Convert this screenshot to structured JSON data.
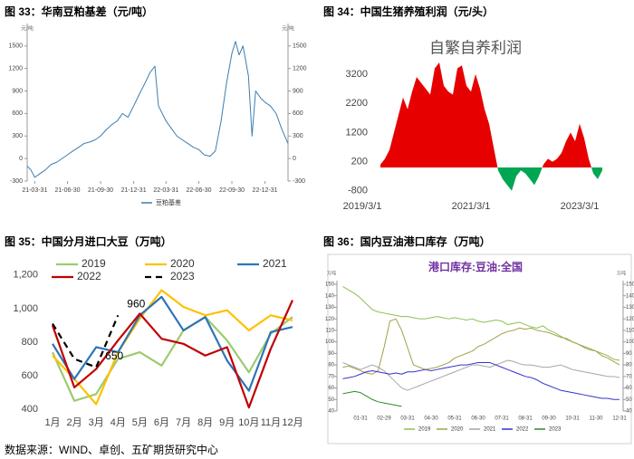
{
  "source": "数据来源：WIND、卓创、五矿期货研究中心",
  "chart_data": [
    {
      "type": "line",
      "title": "图 33：华南豆粕基差（元/吨）",
      "ylabel": "元/吨",
      "y2label": "元/吨",
      "x": [
        "21-03-10",
        "21-03-20",
        "21-03-31",
        "21-04-15",
        "21-04-30",
        "21-05-15",
        "21-05-31",
        "21-06-15",
        "21-06-30",
        "21-07-15",
        "21-07-31",
        "21-08-15",
        "21-08-31",
        "21-09-15",
        "21-09-30",
        "21-10-15",
        "21-10-31",
        "21-11-15",
        "21-11-30",
        "21-12-15",
        "21-12-31",
        "22-01-15",
        "22-01-31",
        "22-02-15",
        "22-02-28",
        "22-03-10",
        "22-03-31",
        "22-04-15",
        "22-04-30",
        "22-05-15",
        "22-05-31",
        "22-06-15",
        "22-06-30",
        "22-07-15",
        "22-07-31",
        "22-08-15",
        "22-08-31",
        "22-09-15",
        "22-09-30",
        "22-10-10",
        "22-10-20",
        "22-10-31",
        "22-11-15",
        "22-11-25",
        "22-12-05",
        "22-12-20",
        "22-12-31",
        "23-01-15",
        "23-01-31",
        "23-02-15",
        "23-03-05"
      ],
      "series": [
        {
          "name": "豆粕基差",
          "color": "#3c7dae",
          "values": [
            -100,
            -150,
            -250,
            -200,
            -150,
            -80,
            -50,
            0,
            50,
            100,
            150,
            200,
            220,
            250,
            300,
            380,
            450,
            500,
            600,
            550,
            700,
            850,
            1000,
            1150,
            1230,
            700,
            500,
            400,
            300,
            250,
            200,
            150,
            120,
            50,
            30,
            100,
            500,
            1000,
            1400,
            1560,
            1380,
            1500,
            1100,
            300,
            900,
            800,
            750,
            700,
            600,
            400,
            200
          ]
        }
      ],
      "xticks": [
        "21-03-31",
        "21-06-30",
        "21-09-30",
        "21-12-31",
        "22-03-31",
        "22-06-30",
        "22-09-30",
        "22-12-31"
      ],
      "ylim": [
        -300,
        1750
      ],
      "yticks": [
        -300,
        0,
        300,
        600,
        900,
        1200,
        1500
      ],
      "y2lim": [
        -300,
        1750
      ],
      "y2ticks": [
        -300,
        0,
        300,
        600,
        900,
        1200,
        1500
      ]
    },
    {
      "type": "area",
      "title": "图 34：中国生猪养殖利润（元/头）",
      "subtitle": "自繁自养利润",
      "color": "#e60000",
      "negative_color": "#00a651",
      "categories": [
        "2019/3/1",
        null,
        null,
        null,
        null,
        null,
        null,
        null,
        null,
        null,
        null,
        null,
        null,
        null,
        null,
        null,
        null,
        null,
        null,
        null,
        null,
        null,
        null,
        null,
        "2021/3/1",
        null,
        null,
        null,
        null,
        null,
        null,
        null,
        null,
        null,
        null,
        null,
        null,
        null,
        null,
        null,
        null,
        null,
        null,
        null,
        null,
        null,
        null,
        null,
        "2023/3/1",
        null,
        null,
        null,
        null,
        null
      ],
      "values": [
        null,
        null,
        null,
        null,
        100,
        300,
        600,
        1200,
        1800,
        2400,
        2000,
        2600,
        3100,
        2900,
        2700,
        2500,
        3400,
        3600,
        2800,
        2600,
        2500,
        3400,
        3500,
        2800,
        2600,
        3200,
        2700,
        2000,
        1500,
        700,
        -100,
        -400,
        -600,
        -800,
        -300,
        -100,
        -200,
        -400,
        -600,
        -300,
        100,
        300,
        200,
        300,
        500,
        900,
        1200,
        900,
        1500,
        1000,
        300,
        -200,
        -400,
        -100
      ],
      "ylim": [
        -900,
        3800
      ],
      "yticks": [
        -800,
        200,
        1200,
        2200,
        3200
      ]
    },
    {
      "type": "line",
      "title": "图 35：中国分月进口大豆（万吨）",
      "categories": [
        "1月",
        "2月",
        "3月",
        "4月",
        "5月",
        "6月",
        "7月",
        "8月",
        "9月",
        "10月",
        "11月",
        "12月"
      ],
      "series": [
        {
          "name": "2019",
          "color": "#9bcb6f",
          "values": [
            740,
            450,
            490,
            700,
            740,
            660,
            870,
            950,
            810,
            620,
            850,
            950
          ]
        },
        {
          "name": "2020",
          "color": "#ffc000",
          "values": [
            720,
            580,
            430,
            740,
            940,
            1110,
            1010,
            960,
            990,
            870,
            960,
            930
          ]
        },
        {
          "name": "2021",
          "color": "#2e75b6",
          "values": [
            790,
            580,
            770,
            740,
            960,
            1070,
            870,
            950,
            690,
            510,
            860,
            890
          ]
        },
        {
          "name": "2022",
          "color": "#c00000",
          "values": [
            900,
            530,
            640,
            810,
            970,
            820,
            790,
            720,
            770,
            410,
            760,
            1050
          ]
        },
        {
          "name": "2023",
          "color": "#000000",
          "dash": true,
          "values": [
            910,
            700,
            650,
            960,
            null,
            null,
            null,
            null,
            null,
            null,
            null,
            null
          ],
          "value_labels": [
            null,
            null,
            "650",
            "960",
            null,
            null,
            null,
            null,
            null,
            null,
            null,
            null
          ]
        }
      ],
      "ylim": [
        400,
        1280
      ],
      "yticks": [
        400,
        600,
        800,
        {
          "value": 1000,
          "label": "1,000"
        },
        {
          "value": 1200,
          "label": "1,200"
        }
      ]
    },
    {
      "type": "line",
      "title": "图 36：国内豆油港口库存（万吨）",
      "subtitle": "港口库存:豆油:全国",
      "ylabel": "万吨",
      "y2label": "万吨",
      "categories": [
        null,
        null,
        null,
        "01-31",
        null,
        null,
        null,
        "02-29",
        null,
        null,
        null,
        "03-31",
        null,
        null,
        null,
        "04-30",
        null,
        null,
        null,
        "05-31",
        null,
        null,
        null,
        "06-30",
        null,
        null,
        null,
        "07-31",
        null,
        null,
        null,
        "08-31",
        null,
        null,
        null,
        "09-30",
        null,
        null,
        null,
        "10-31",
        null,
        null,
        null,
        "11-30",
        null,
        null,
        null,
        "12-31"
      ],
      "series": [
        {
          "name": "2019",
          "color": "#8cc152",
          "values": [
            148,
            145,
            142,
            138,
            133,
            128,
            126,
            125,
            124,
            123,
            122,
            122,
            121,
            120,
            120,
            121,
            122,
            121,
            120,
            121,
            120,
            119,
            120,
            118,
            117,
            118,
            119,
            118,
            115,
            116,
            117,
            115,
            113,
            112,
            114,
            110,
            108,
            105,
            102,
            100,
            98,
            95,
            93,
            92,
            90,
            88,
            85,
            84
          ]
        },
        {
          "name": "2020",
          "color": "#a3a04a",
          "values": [
            78,
            79,
            77,
            75,
            73,
            72,
            75,
            95,
            118,
            120,
            110,
            95,
            80,
            78,
            76,
            77,
            78,
            80,
            82,
            86,
            88,
            90,
            92,
            96,
            98,
            101,
            104,
            107,
            109,
            110,
            112,
            111,
            112,
            110,
            109,
            108,
            106,
            104,
            103,
            100,
            98,
            96,
            94,
            92,
            88,
            86,
            83,
            80
          ]
        },
        {
          "name": "2021",
          "color": "#a6a6a6",
          "values": [
            82,
            80,
            78,
            76,
            78,
            80,
            78,
            75,
            70,
            65,
            60,
            58,
            60,
            62,
            64,
            66,
            68,
            70,
            72,
            74,
            76,
            78,
            80,
            80,
            79,
            78,
            80,
            82,
            84,
            83,
            81,
            80,
            80,
            79,
            78,
            78,
            79,
            80,
            78,
            76,
            75,
            74,
            73,
            72,
            71,
            70,
            70,
            69
          ]
        },
        {
          "name": "2022",
          "color": "#3333cc",
          "values": [
            68,
            69,
            70,
            72,
            74,
            75,
            74,
            73,
            72,
            73,
            72,
            74,
            74,
            75,
            76,
            75,
            76,
            77,
            78,
            79,
            80,
            80,
            81,
            82,
            82,
            82,
            80,
            78,
            76,
            74,
            72,
            70,
            69,
            67,
            64,
            62,
            60,
            58,
            57,
            56,
            55,
            54,
            53,
            52,
            51,
            51,
            50,
            50
          ]
        },
        {
          "name": "2023",
          "color": "#2e8b2e",
          "values": [
            55,
            56,
            57,
            56,
            53,
            50,
            48,
            47,
            46,
            45,
            44,
            null,
            null,
            null,
            null,
            null,
            null,
            null,
            null,
            null,
            null,
            null,
            null,
            null,
            null,
            null,
            null,
            null,
            null,
            null,
            null,
            null,
            null,
            null,
            null,
            null,
            null,
            null,
            null,
            null,
            null,
            null,
            null,
            null,
            null,
            null,
            null,
            null
          ]
        }
      ],
      "ylim": [
        40,
        150
      ],
      "yticks": [
        40,
        50,
        60,
        70,
        80,
        90,
        100,
        110,
        120,
        130,
        140,
        150
      ],
      "y2lim": [
        40,
        150
      ],
      "y2ticks": [
        40,
        50,
        60,
        70,
        80,
        90,
        100,
        110,
        120,
        130,
        140,
        150
      ]
    }
  ]
}
